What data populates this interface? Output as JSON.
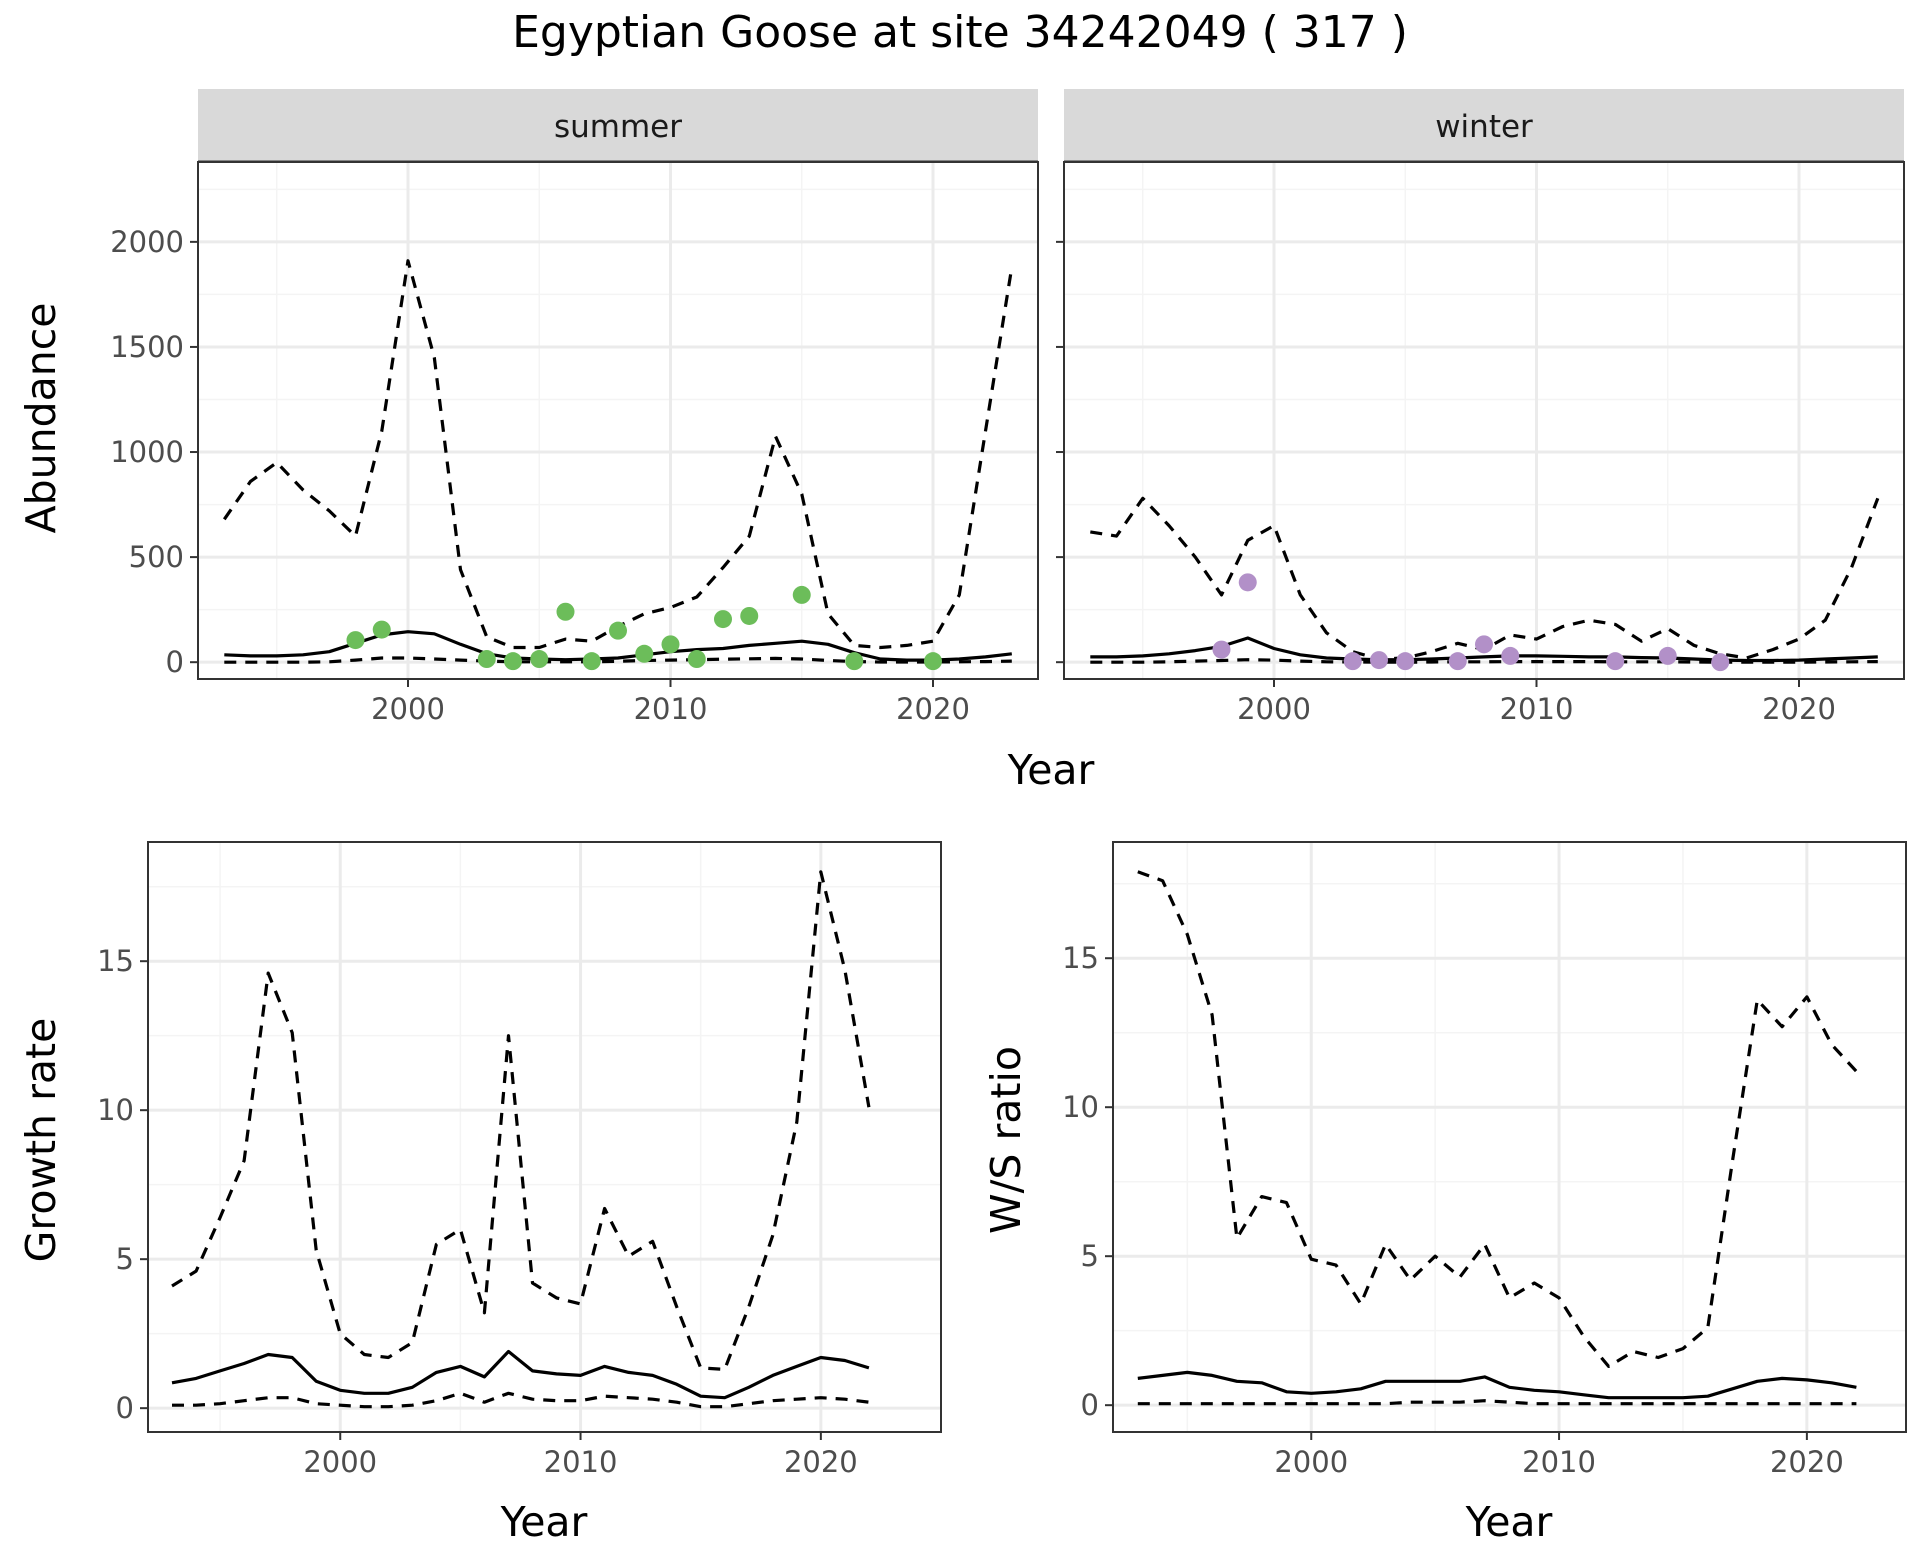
{
  "title": "Egyptian Goose at site 34242049 ( 317 )",
  "colors": {
    "summer_points": "#6cbd5a",
    "winter_points": "#b290c8",
    "line": "#000000",
    "strip_fill": "#d9d9d9",
    "strip_border": "#333333",
    "grid_major": "#ebebeb",
    "grid_minor": "#f4f4f4"
  },
  "chart_data": [
    {
      "type": "line",
      "panel": "summer",
      "strip_label": "summer",
      "xlabel": "Year",
      "ylabel": "Abundance",
      "xlim": [
        1992,
        2024
      ],
      "ylim": [
        -80,
        2380
      ],
      "x_ticks": [
        2000,
        2010,
        2020
      ],
      "y_ticks": [
        0,
        500,
        1000,
        1500,
        2000
      ],
      "grid": true,
      "x": [
        1993,
        1994,
        1995,
        1996,
        1997,
        1998,
        1999,
        2000,
        2001,
        2002,
        2003,
        2004,
        2005,
        2006,
        2007,
        2008,
        2009,
        2010,
        2011,
        2012,
        2013,
        2014,
        2015,
        2016,
        2017,
        2018,
        2019,
        2020,
        2021,
        2022,
        2023
      ],
      "series": [
        {
          "style": "solid",
          "values": [
            35,
            30,
            30,
            35,
            50,
            90,
            130,
            145,
            135,
            85,
            40,
            20,
            15,
            12,
            15,
            20,
            35,
            50,
            60,
            65,
            80,
            90,
            100,
            85,
            45,
            15,
            10,
            10,
            15,
            25,
            40
          ]
        },
        {
          "style": "dashed",
          "values": [
            680,
            860,
            950,
            820,
            720,
            600,
            1100,
            1910,
            1450,
            440,
            120,
            70,
            70,
            110,
            100,
            170,
            230,
            260,
            310,
            450,
            600,
            1075,
            800,
            230,
            80,
            70,
            80,
            100,
            320,
            1100,
            1880
          ]
        },
        {
          "style": "dashed",
          "values": [
            0,
            0,
            0,
            0,
            2,
            10,
            20,
            20,
            15,
            10,
            5,
            2,
            2,
            2,
            2,
            4,
            8,
            10,
            12,
            14,
            16,
            18,
            15,
            8,
            3,
            1,
            1,
            1,
            2,
            3,
            5
          ]
        }
      ],
      "points": [
        [
          1998,
          105
        ],
        [
          1999,
          155
        ],
        [
          2003,
          15
        ],
        [
          2004,
          5
        ],
        [
          2005,
          15
        ],
        [
          2006,
          240
        ],
        [
          2007,
          5
        ],
        [
          2008,
          150
        ],
        [
          2009,
          40
        ],
        [
          2010,
          85
        ],
        [
          2011,
          15
        ],
        [
          2012,
          205
        ],
        [
          2013,
          220
        ],
        [
          2015,
          320
        ],
        [
          2017,
          5
        ],
        [
          2020,
          5
        ]
      ]
    },
    {
      "type": "line",
      "panel": "winter",
      "strip_label": "winter",
      "xlabel": "Year",
      "ylabel": "Abundance",
      "xlim": [
        1992,
        2024
      ],
      "ylim": [
        -80,
        2380
      ],
      "x_ticks": [
        2000,
        2010,
        2020
      ],
      "y_ticks": [
        0,
        500,
        1000,
        1500,
        2000
      ],
      "grid": true,
      "x": [
        1993,
        1994,
        1995,
        1996,
        1997,
        1998,
        1999,
        2000,
        2001,
        2002,
        2003,
        2004,
        2005,
        2006,
        2007,
        2008,
        2009,
        2010,
        2011,
        2012,
        2013,
        2014,
        2015,
        2016,
        2017,
        2018,
        2019,
        2020,
        2021,
        2022,
        2023
      ],
      "series": [
        {
          "style": "solid",
          "values": [
            25,
            25,
            30,
            40,
            55,
            75,
            115,
            65,
            35,
            20,
            15,
            12,
            12,
            15,
            20,
            25,
            30,
            30,
            28,
            25,
            25,
            22,
            20,
            15,
            10,
            8,
            8,
            10,
            15,
            20,
            25
          ]
        },
        {
          "style": "dashed",
          "values": [
            620,
            600,
            780,
            650,
            500,
            320,
            580,
            650,
            320,
            140,
            50,
            15,
            20,
            50,
            90,
            60,
            130,
            110,
            170,
            200,
            180,
            100,
            160,
            80,
            40,
            20,
            60,
            110,
            200,
            450,
            780
          ]
        },
        {
          "style": "dashed",
          "values": [
            0,
            0,
            0,
            2,
            5,
            8,
            12,
            10,
            5,
            2,
            1,
            0,
            0,
            1,
            2,
            2,
            3,
            3,
            3,
            3,
            2,
            2,
            2,
            1,
            0,
            0,
            0,
            0,
            1,
            2,
            3
          ]
        }
      ],
      "points": [
        [
          1998,
          60
        ],
        [
          1999,
          380
        ],
        [
          2003,
          5
        ],
        [
          2004,
          10
        ],
        [
          2005,
          5
        ],
        [
          2007,
          5
        ],
        [
          2008,
          85
        ],
        [
          2009,
          30
        ],
        [
          2013,
          5
        ],
        [
          2015,
          30
        ],
        [
          2017,
          0
        ]
      ]
    },
    {
      "type": "line",
      "panel": "growth",
      "xlabel": "Year",
      "ylabel": "Growth rate",
      "xlim": [
        1992,
        2025
      ],
      "ylim": [
        -0.8,
        19.0
      ],
      "x_ticks": [
        2000,
        2010,
        2020
      ],
      "y_ticks": [
        0,
        5,
        10,
        15
      ],
      "grid": true,
      "x": [
        1993,
        1994,
        1995,
        1996,
        1997,
        1998,
        1999,
        2000,
        2001,
        2002,
        2003,
        2004,
        2005,
        2006,
        2007,
        2008,
        2009,
        2010,
        2011,
        2012,
        2013,
        2014,
        2015,
        2016,
        2017,
        2018,
        2019,
        2020,
        2021,
        2022
      ],
      "series": [
        {
          "style": "solid",
          "values": [
            0.85,
            1.0,
            1.25,
            1.5,
            1.8,
            1.7,
            0.9,
            0.6,
            0.5,
            0.5,
            0.7,
            1.2,
            1.4,
            1.05,
            1.9,
            1.25,
            1.15,
            1.1,
            1.4,
            1.2,
            1.1,
            0.8,
            0.4,
            0.35,
            0.7,
            1.1,
            1.4,
            1.7,
            1.6,
            1.35
          ]
        },
        {
          "style": "dashed",
          "values": [
            4.1,
            4.6,
            6.4,
            8.3,
            14.6,
            12.6,
            5.3,
            2.5,
            1.8,
            1.7,
            2.2,
            5.5,
            6.0,
            3.2,
            12.5,
            4.2,
            3.7,
            3.5,
            6.7,
            5.1,
            5.6,
            3.4,
            1.35,
            1.3,
            3.4,
            5.8,
            9.6,
            18.0,
            14.7,
            10.1
          ]
        },
        {
          "style": "dashed",
          "values": [
            0.1,
            0.1,
            0.15,
            0.25,
            0.35,
            0.35,
            0.15,
            0.1,
            0.05,
            0.05,
            0.1,
            0.25,
            0.5,
            0.2,
            0.5,
            0.3,
            0.25,
            0.25,
            0.4,
            0.35,
            0.3,
            0.2,
            0.05,
            0.05,
            0.15,
            0.25,
            0.3,
            0.35,
            0.3,
            0.2
          ]
        }
      ]
    },
    {
      "type": "line",
      "panel": "ws-ratio",
      "xlabel": "Year",
      "ylabel": "W/S ratio",
      "xlim": [
        1992,
        2024
      ],
      "ylim": [
        -0.9,
        18.9
      ],
      "x_ticks": [
        2000,
        2010,
        2020
      ],
      "y_ticks": [
        0,
        5,
        10,
        15
      ],
      "grid": true,
      "x": [
        1993,
        1994,
        1995,
        1996,
        1997,
        1998,
        1999,
        2000,
        2001,
        2002,
        2003,
        2004,
        2005,
        2006,
        2007,
        2008,
        2009,
        2010,
        2011,
        2012,
        2013,
        2014,
        2015,
        2016,
        2017,
        2018,
        2019,
        2020,
        2021,
        2022
      ],
      "series": [
        {
          "style": "solid",
          "values": [
            0.9,
            1.0,
            1.1,
            1.0,
            0.8,
            0.75,
            0.45,
            0.4,
            0.45,
            0.55,
            0.8,
            0.8,
            0.8,
            0.8,
            0.95,
            0.6,
            0.5,
            0.45,
            0.35,
            0.25,
            0.25,
            0.25,
            0.25,
            0.3,
            0.55,
            0.8,
            0.9,
            0.85,
            0.75,
            0.6
          ]
        },
        {
          "style": "dashed",
          "values": [
            17.9,
            17.6,
            15.8,
            13.1,
            5.6,
            7.0,
            6.8,
            4.9,
            4.7,
            3.4,
            5.4,
            4.2,
            5.0,
            4.3,
            5.4,
            3.6,
            4.1,
            3.6,
            2.3,
            1.3,
            1.8,
            1.6,
            1.9,
            2.6,
            8.2,
            13.6,
            12.7,
            13.7,
            12.1,
            11.2
          ]
        },
        {
          "style": "dashed",
          "values": [
            0.05,
            0.05,
            0.05,
            0.05,
            0.05,
            0.05,
            0.05,
            0.05,
            0.05,
            0.05,
            0.05,
            0.1,
            0.1,
            0.1,
            0.15,
            0.1,
            0.05,
            0.05,
            0.05,
            0.05,
            0.05,
            0.05,
            0.05,
            0.05,
            0.05,
            0.05,
            0.05,
            0.05,
            0.05,
            0.05
          ]
        }
      ]
    }
  ]
}
